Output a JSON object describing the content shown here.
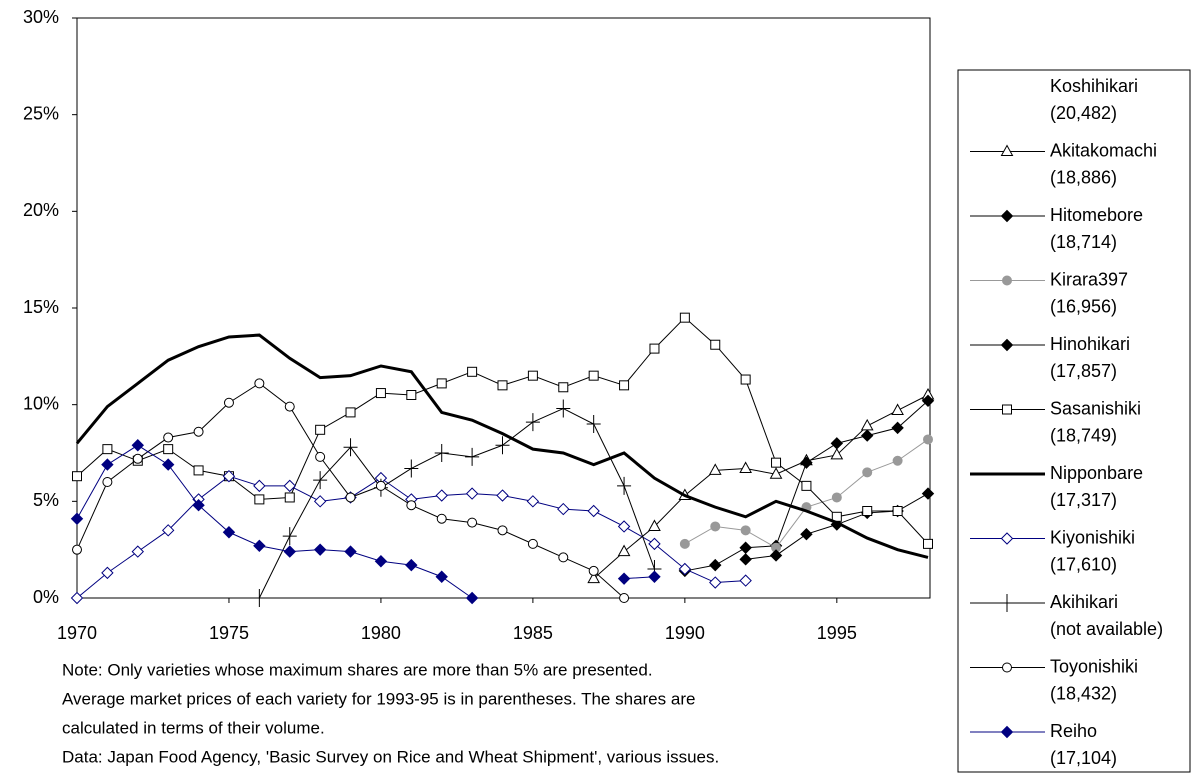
{
  "chart_data": {
    "type": "line",
    "x": [
      1970,
      1971,
      1972,
      1973,
      1974,
      1975,
      1976,
      1977,
      1978,
      1979,
      1980,
      1981,
      1982,
      1983,
      1984,
      1985,
      1986,
      1987,
      1988,
      1989,
      1990,
      1991,
      1992,
      1993,
      1994,
      1995,
      1996,
      1997,
      1998
    ],
    "xlim": [
      1970,
      1998
    ],
    "xticks": [
      1970,
      1975,
      1980,
      1985,
      1990,
      1995
    ],
    "ylim": [
      0,
      30
    ],
    "yticks": [
      {
        "value": 0,
        "label": "0%"
      },
      {
        "value": 5,
        "label": "5%"
      },
      {
        "value": 10,
        "label": "10%"
      },
      {
        "value": 15,
        "label": "15%"
      },
      {
        "value": 20,
        "label": "20%"
      },
      {
        "value": 25,
        "label": "25%"
      },
      {
        "value": 30,
        "label": "30%"
      }
    ],
    "series": [
      {
        "name": "Koshihikari",
        "note": "(20,482)",
        "color": "#ffffff",
        "marker": "none",
        "width": 1,
        "fill": "none",
        "values": [
          null,
          null,
          null,
          null,
          null,
          null,
          null,
          null,
          null,
          null,
          null,
          null,
          null,
          null,
          null,
          null,
          null,
          null,
          null,
          null,
          null,
          null,
          null,
          null,
          null,
          null,
          null,
          null,
          null
        ]
      },
      {
        "name": "Akitakomachi",
        "note": "(18,886)",
        "color": "#000000",
        "marker": "triangle",
        "width": 1,
        "fill": "#ffffff",
        "values": [
          null,
          null,
          null,
          null,
          null,
          null,
          null,
          null,
          null,
          null,
          null,
          null,
          null,
          null,
          null,
          null,
          null,
          1.0,
          2.4,
          3.7,
          5.3,
          6.6,
          6.7,
          6.4,
          7.1,
          7.4,
          8.9,
          9.7,
          10.5
        ]
      },
      {
        "name": "Hitomebore",
        "note": "(18,714)",
        "color": "#000000",
        "marker": "diamond",
        "width": 1,
        "fill": "#000000",
        "values": [
          null,
          null,
          null,
          null,
          null,
          null,
          null,
          null,
          null,
          null,
          null,
          null,
          null,
          null,
          null,
          null,
          null,
          null,
          null,
          null,
          1.4,
          1.7,
          2.6,
          2.7,
          7.0,
          8.0,
          8.4,
          8.8,
          10.2
        ]
      },
      {
        "name": "Kirara397",
        "note": "(16,956)",
        "color": "#999999",
        "marker": "circle",
        "width": 1,
        "fill": "#999999",
        "values": [
          null,
          null,
          null,
          null,
          null,
          null,
          null,
          null,
          null,
          null,
          null,
          null,
          null,
          null,
          null,
          null,
          null,
          null,
          null,
          null,
          2.8,
          3.7,
          3.5,
          2.6,
          4.7,
          5.2,
          6.5,
          7.1,
          8.2
        ]
      },
      {
        "name": "Hinohikari",
        "note": "(17,857)",
        "color": "#000000",
        "marker": "diamond",
        "width": 1,
        "fill": "#000000",
        "values": [
          null,
          null,
          null,
          null,
          null,
          null,
          null,
          null,
          null,
          null,
          null,
          null,
          null,
          null,
          null,
          null,
          null,
          null,
          null,
          null,
          null,
          null,
          2.0,
          2.2,
          3.3,
          3.8,
          4.4,
          4.5,
          5.4
        ]
      },
      {
        "name": "Sasanishiki",
        "note": "(18,749)",
        "color": "#000000",
        "marker": "square",
        "width": 1,
        "fill": "#ffffff",
        "values": [
          6.3,
          7.7,
          7.1,
          7.7,
          6.6,
          6.3,
          5.1,
          5.2,
          8.7,
          9.6,
          10.6,
          10.5,
          11.1,
          11.7,
          11.0,
          11.5,
          10.9,
          11.5,
          11.0,
          12.9,
          14.5,
          13.1,
          11.3,
          7.0,
          5.8,
          4.2,
          4.5,
          4.5,
          2.8
        ]
      },
      {
        "name": "Nipponbare",
        "note": "(17,317)",
        "color": "#000000",
        "marker": "none",
        "width": 3,
        "fill": "none",
        "values": [
          8.0,
          9.9,
          11.1,
          12.3,
          13.0,
          13.5,
          13.6,
          12.4,
          11.4,
          11.5,
          12.0,
          11.7,
          9.6,
          9.2,
          8.5,
          7.7,
          7.5,
          6.9,
          7.5,
          6.2,
          5.3,
          4.7,
          4.2,
          5.0,
          4.5,
          3.9,
          3.1,
          2.5,
          2.1
        ]
      },
      {
        "name": "Kiyonishiki",
        "note": "(17,610)",
        "color": "#000080",
        "marker": "diamond",
        "width": 1,
        "fill": "#ffffff",
        "values": [
          0.0,
          1.3,
          2.4,
          3.5,
          5.1,
          6.3,
          5.8,
          5.8,
          5.0,
          5.2,
          6.2,
          5.1,
          5.3,
          5.4,
          5.3,
          5.0,
          4.6,
          4.5,
          3.7,
          2.8,
          1.5,
          0.8,
          0.9,
          null,
          null,
          null,
          null,
          null,
          null
        ]
      },
      {
        "name": "Akihikari",
        "note": "(not available)",
        "color": "#000000",
        "marker": "plus",
        "width": 1,
        "fill": "none",
        "values": [
          null,
          null,
          null,
          null,
          null,
          null,
          0.0,
          3.2,
          6.1,
          7.8,
          5.7,
          6.7,
          7.5,
          7.3,
          7.9,
          9.1,
          9.8,
          9.0,
          5.8,
          1.5,
          null,
          null,
          null,
          null,
          null,
          null,
          null,
          null,
          null
        ]
      },
      {
        "name": "Toyonishiki",
        "note": "(18,432)",
        "color": "#000000",
        "marker": "circle",
        "width": 1,
        "fill": "#ffffff",
        "values": [
          2.5,
          6.0,
          7.2,
          8.3,
          8.6,
          10.1,
          11.1,
          9.9,
          7.3,
          5.2,
          5.8,
          4.8,
          4.1,
          3.9,
          3.5,
          2.8,
          2.1,
          1.4,
          0.0,
          null,
          null,
          null,
          null,
          null,
          null,
          null,
          null,
          null,
          null
        ]
      },
      {
        "name": "Reiho",
        "note": "(17,104)",
        "color": "#000080",
        "marker": "diamond",
        "width": 1,
        "fill": "#000080",
        "values": [
          4.1,
          6.9,
          7.9,
          6.9,
          4.8,
          3.4,
          2.7,
          2.4,
          2.5,
          2.4,
          1.9,
          1.7,
          1.1,
          0.0,
          null,
          null,
          null,
          null,
          1.0,
          1.1,
          null,
          null,
          null,
          null,
          null,
          null,
          null,
          null,
          null
        ]
      }
    ],
    "notes": [
      "Note: Only varieties whose maximum shares are more than 5% are presented.",
      "Average market prices of each variety for 1993-95 is in parentheses. The shares are",
      "calculated in terms of their volume.",
      "Data:   Japan Food Agency, 'Basic Survey on Rice and Wheat Shipment', various issues."
    ]
  }
}
